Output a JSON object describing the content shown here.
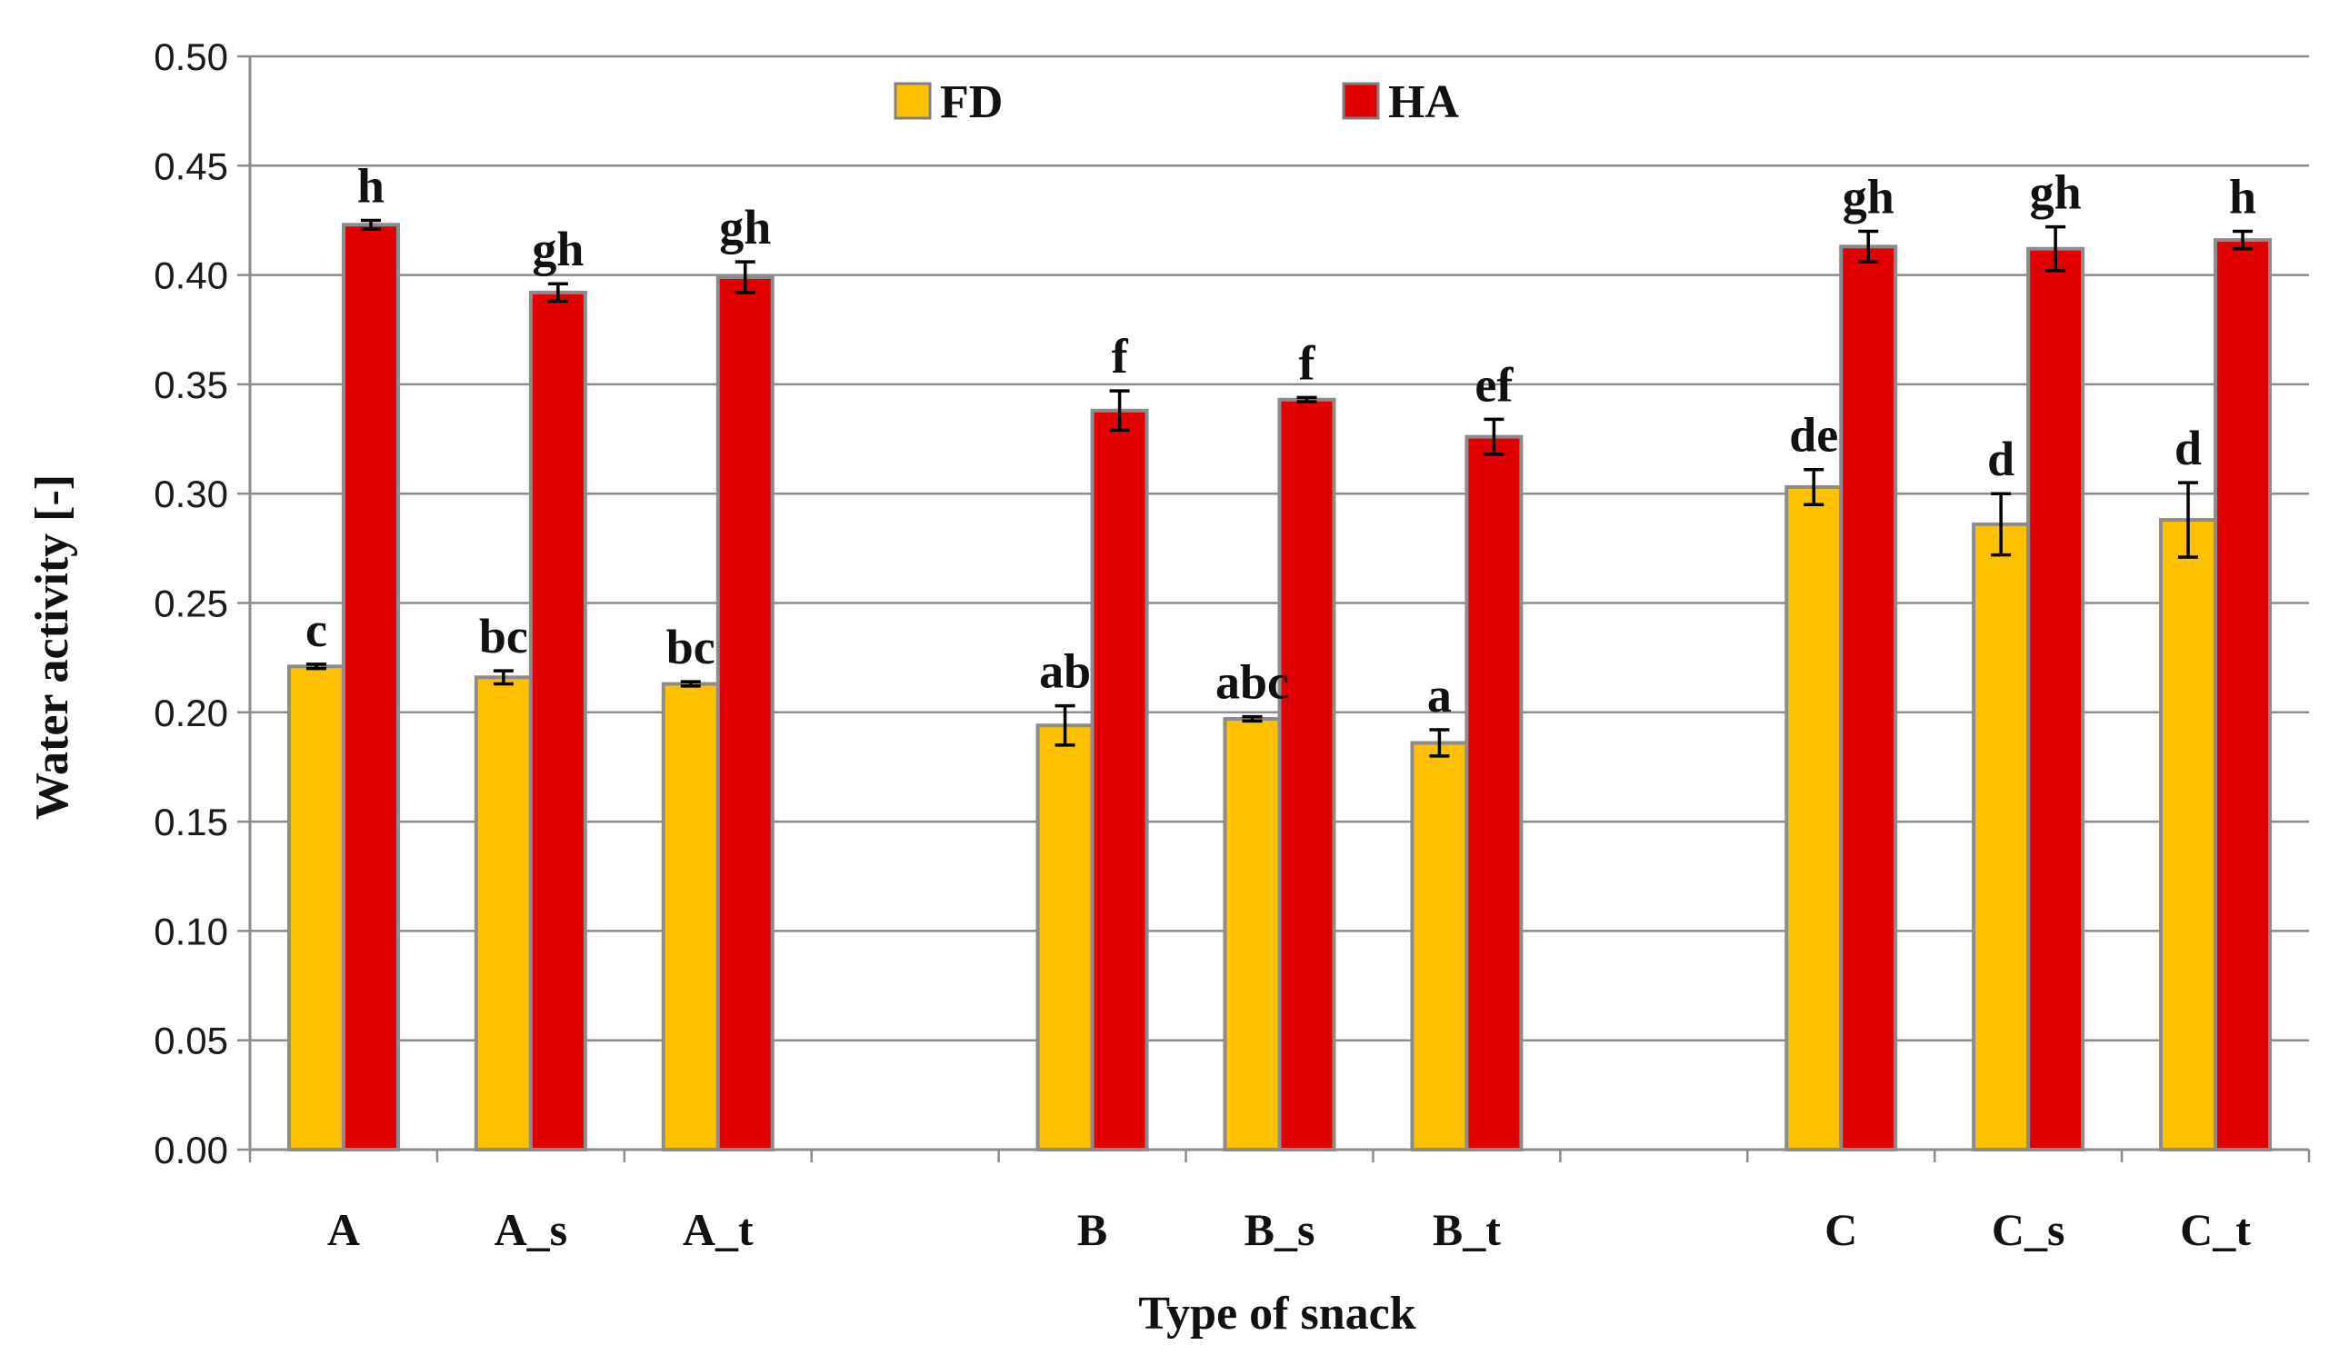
{
  "chart_data": {
    "type": "bar",
    "xlabel": "Type of snack",
    "ylabel": "Water activity [-]",
    "ylim": [
      0,
      0.5
    ],
    "yticks": [
      "0.00",
      "0.05",
      "0.10",
      "0.15",
      "0.20",
      "0.25",
      "0.30",
      "0.35",
      "0.40",
      "0.45",
      "0.50"
    ],
    "grid": true,
    "legend_position": "top-center",
    "slots": [
      "A",
      "A_s",
      "A_t",
      "",
      "B",
      "B_s",
      "B_t",
      "",
      "C",
      "C_s",
      "C_t"
    ],
    "categories": [
      "A",
      "A_s",
      "A_t",
      "B",
      "B_s",
      "B_t",
      "C",
      "C_s",
      "C_t"
    ],
    "series": [
      {
        "name": "FD",
        "color": "#FFC000",
        "values": [
          0.221,
          0.216,
          0.213,
          0.194,
          0.197,
          0.186,
          0.303,
          0.286,
          0.288
        ],
        "errors": [
          0.001,
          0.003,
          0.001,
          0.009,
          0.001,
          0.006,
          0.008,
          0.014,
          0.017
        ],
        "labels": [
          "c",
          "bc",
          "bc",
          "ab",
          "abc",
          "a",
          "de",
          "d",
          "d"
        ]
      },
      {
        "name": "HA",
        "color": "#E00000",
        "values": [
          0.423,
          0.392,
          0.399,
          0.338,
          0.343,
          0.326,
          0.413,
          0.412,
          0.416
        ],
        "errors": [
          0.002,
          0.004,
          0.007,
          0.009,
          0.001,
          0.008,
          0.007,
          0.01,
          0.004
        ],
        "labels": [
          "h",
          "gh",
          "gh",
          "f",
          "f",
          "ef",
          "gh",
          "gh",
          "h"
        ]
      }
    ]
  }
}
